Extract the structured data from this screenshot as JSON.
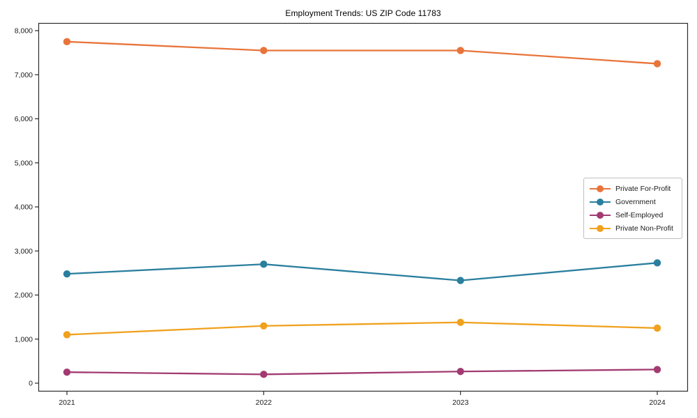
{
  "figure": {
    "background": "#ffffff",
    "axis_color": "#2b2b2b",
    "tick_label_color": "#1a1a1a"
  },
  "chart_data": {
    "type": "line",
    "title": "Employment Trends: US ZIP Code 11783",
    "xlabel": "",
    "ylabel": "",
    "categories": [
      "2021",
      "2022",
      "2023",
      "2024"
    ],
    "series": [
      {
        "name": "Private For-Profit",
        "color": "#E8743B",
        "values": [
          7750,
          7550,
          7550,
          7250
        ]
      },
      {
        "name": "Government",
        "color": "#2A7F9E",
        "values": [
          2480,
          2700,
          2330,
          2730
        ]
      },
      {
        "name": "Self-Employed",
        "color": "#A23B72",
        "values": [
          250,
          200,
          265,
          310
        ]
      },
      {
        "name": "Private Non-Profit",
        "color": "#F0A11E",
        "values": [
          1100,
          1300,
          1380,
          1250
        ]
      }
    ],
    "ylim": [
      0,
      8000
    ],
    "y_ticks": [
      0,
      1000,
      2000,
      3000,
      4000,
      5000,
      6000,
      7000,
      8000
    ],
    "y_tick_labels": [
      "0",
      "1,000",
      "2,000",
      "3,000",
      "4,000",
      "5,000",
      "6,000",
      "7,000",
      "8,000"
    ],
    "grid": false,
    "legend_position": "center-right",
    "marker": "circle"
  }
}
